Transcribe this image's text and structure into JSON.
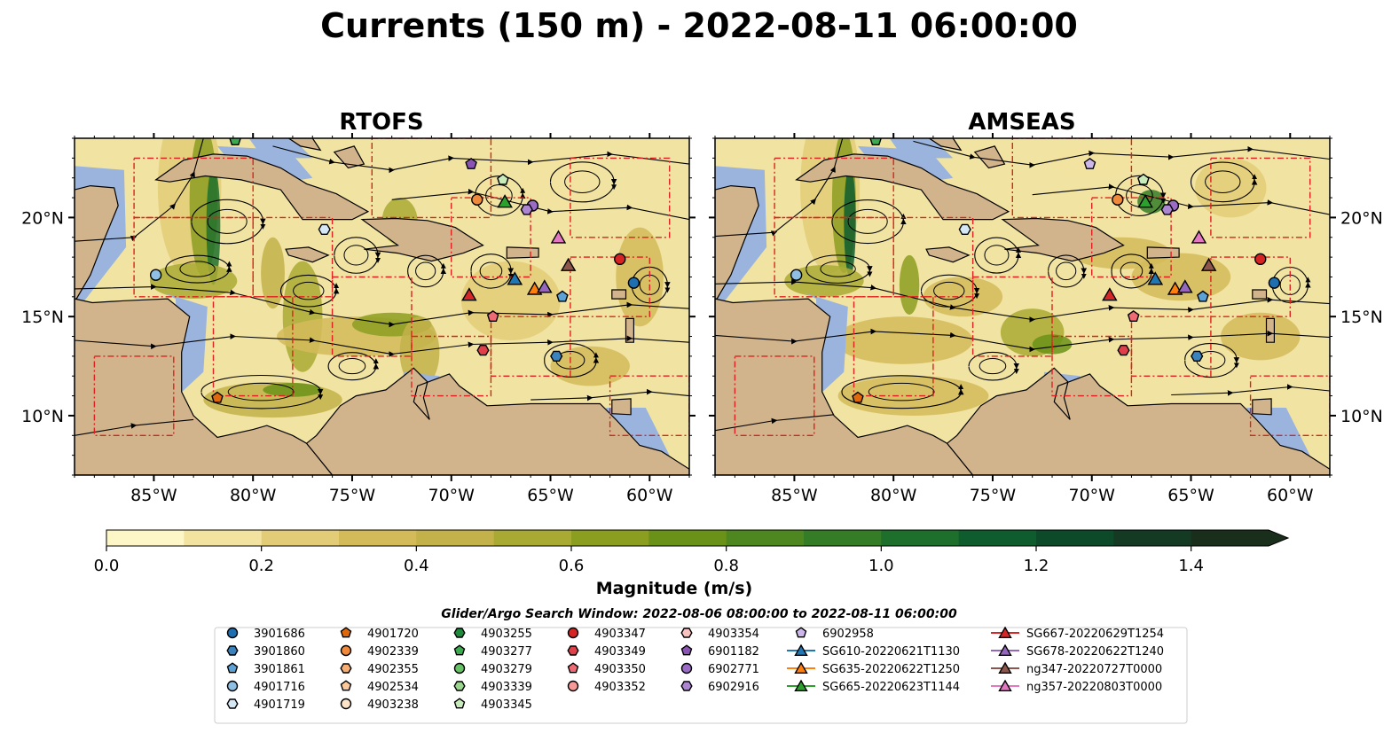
{
  "figure": {
    "title": "Currents (150 m) - 2022-08-11 06:00:00",
    "search_window": "Glider/Argo Search Window: 2022-08-06 08:00:00 to 2022-08-11 06:00:00"
  },
  "colors": {
    "land": "#d2b48c",
    "shallow_water": "#9ab4de",
    "grid_line": "#e02020",
    "colormap": [
      "#fdf6c6",
      "#f2e3a0",
      "#e3cc78",
      "#d4bb5a",
      "#c3b24a",
      "#a9aa34",
      "#8c9e20",
      "#6b9218",
      "#4e8720",
      "#357c26",
      "#1e6e2c",
      "#0f5c2e",
      "#0d4a2a",
      "#153a24",
      "#1a2e1c"
    ]
  },
  "maps": {
    "axes": {
      "lon_range": [
        -89,
        -58
      ],
      "lat_range": [
        7,
        24
      ],
      "lon_ticks": [
        "85°W",
        "80°W",
        "75°W",
        "70°W",
        "65°W",
        "60°W"
      ],
      "lat_ticks": [
        "20°N",
        "15°N",
        "10°N"
      ]
    },
    "panels": [
      {
        "title": "RTOFS",
        "markers": [
          {
            "id": "3901686",
            "lon": -60.8,
            "lat": 16.7
          },
          {
            "id": "3901860",
            "lon": -64.7,
            "lat": 13.0
          },
          {
            "id": "3901861",
            "lon": -64.4,
            "lat": 16.0
          },
          {
            "id": "4901716",
            "lon": -84.9,
            "lat": 17.1
          },
          {
            "id": "4901719",
            "lon": -76.4,
            "lat": 19.4
          },
          {
            "id": "4902339",
            "lon": -68.7,
            "lat": 20.9
          },
          {
            "id": "4901720",
            "lon": -81.8,
            "lat": 10.9
          },
          {
            "id": "4903277",
            "lon": -80.9,
            "lat": 23.9
          },
          {
            "id": "4903345",
            "lon": -67.4,
            "lat": 21.9
          },
          {
            "id": "4903347",
            "lon": -61.5,
            "lat": 17.9
          },
          {
            "id": "4903349",
            "lon": -68.4,
            "lat": 13.3
          },
          {
            "id": "4903350",
            "lon": -67.9,
            "lat": 15.0
          },
          {
            "id": "6902771",
            "lon": -65.9,
            "lat": 20.6
          },
          {
            "id": "6902916",
            "lon": -66.2,
            "lat": 20.4
          },
          {
            "id": "6901182",
            "lon": -69.0,
            "lat": 22.7
          },
          {
            "id": "SG610-20220621T1130",
            "lon": -66.8,
            "lat": 16.9
          },
          {
            "id": "SG635-20220622T1250",
            "lon": -65.8,
            "lat": 16.4
          },
          {
            "id": "SG665-20220623T1144",
            "lon": -67.3,
            "lat": 20.8
          },
          {
            "id": "SG667-20220629T1254",
            "lon": -69.1,
            "lat": 16.1
          },
          {
            "id": "SG678-20220622T1240",
            "lon": -65.3,
            "lat": 16.5
          },
          {
            "id": "ng347-20220727T0000",
            "lon": -64.1,
            "lat": 17.6
          },
          {
            "id": "ng357-20220803T0000",
            "lon": -64.6,
            "lat": 19.0
          }
        ]
      },
      {
        "title": "AMSEAS",
        "markers": [
          {
            "id": "3901686",
            "lon": -60.8,
            "lat": 16.7
          },
          {
            "id": "3901860",
            "lon": -64.7,
            "lat": 13.0
          },
          {
            "id": "3901861",
            "lon": -64.4,
            "lat": 16.0
          },
          {
            "id": "4901716",
            "lon": -84.9,
            "lat": 17.1
          },
          {
            "id": "4901719",
            "lon": -76.4,
            "lat": 19.4
          },
          {
            "id": "4902339",
            "lon": -68.7,
            "lat": 20.9
          },
          {
            "id": "4901720",
            "lon": -81.8,
            "lat": 10.9
          },
          {
            "id": "4903277",
            "lon": -80.9,
            "lat": 23.9
          },
          {
            "id": "4903345",
            "lon": -67.4,
            "lat": 21.9
          },
          {
            "id": "4903347",
            "lon": -61.5,
            "lat": 17.9
          },
          {
            "id": "4903349",
            "lon": -68.4,
            "lat": 13.3
          },
          {
            "id": "4903350",
            "lon": -67.9,
            "lat": 15.0
          },
          {
            "id": "6902771",
            "lon": -65.9,
            "lat": 20.6
          },
          {
            "id": "6902916",
            "lon": -66.2,
            "lat": 20.4
          },
          {
            "id": "6902958",
            "lon": -70.1,
            "lat": 22.7
          },
          {
            "id": "SG610-20220621T1130",
            "lon": -66.8,
            "lat": 16.9
          },
          {
            "id": "SG635-20220622T1250",
            "lon": -65.8,
            "lat": 16.4
          },
          {
            "id": "SG665-20220623T1144",
            "lon": -67.3,
            "lat": 20.8
          },
          {
            "id": "SG667-20220629T1254",
            "lon": -69.1,
            "lat": 16.1
          },
          {
            "id": "SG678-20220622T1240",
            "lon": -65.3,
            "lat": 16.5
          },
          {
            "id": "ng347-20220727T0000",
            "lon": -64.1,
            "lat": 17.6
          },
          {
            "id": "ng357-20220803T0000",
            "lon": -64.6,
            "lat": 19.0
          }
        ]
      }
    ]
  },
  "colorbar": {
    "label": "Magnitude (m/s)",
    "ticks": [
      "0.0",
      "0.2",
      "0.4",
      "0.6",
      "0.8",
      "1.0",
      "1.2",
      "1.4"
    ],
    "tick_values": [
      0,
      0.2,
      0.4,
      0.6,
      0.8,
      1.0,
      1.2,
      1.4
    ],
    "range": [
      0,
      1.5
    ],
    "extend": "max"
  },
  "legend": {
    "columns": [
      [
        {
          "label": "3901686",
          "shape": "circle",
          "color": "#1f6fb0"
        },
        {
          "label": "3901860",
          "shape": "hexagon",
          "color": "#3a83bd"
        },
        {
          "label": "3901861",
          "shape": "pentagon",
          "color": "#5da2d6"
        },
        {
          "label": "4901716",
          "shape": "circle",
          "color": "#8fc0e4"
        },
        {
          "label": "4901719",
          "shape": "hexagon",
          "color": "#d6e8f6"
        }
      ],
      [
        {
          "label": "4901720",
          "shape": "pentagon",
          "color": "#e0680c"
        },
        {
          "label": "4902339",
          "shape": "circle",
          "color": "#f08a3a"
        },
        {
          "label": "4902355",
          "shape": "hexagon",
          "color": "#f7ae72"
        },
        {
          "label": "4902534",
          "shape": "pentagon",
          "color": "#fbc99c"
        },
        {
          "label": "4903238",
          "shape": "circle",
          "color": "#fde3c8"
        }
      ],
      [
        {
          "label": "4903255",
          "shape": "hexagon",
          "color": "#1e8a3c"
        },
        {
          "label": "4903277",
          "shape": "pentagon",
          "color": "#3caa4e"
        },
        {
          "label": "4903279",
          "shape": "circle",
          "color": "#67c266"
        },
        {
          "label": "4903339",
          "shape": "hexagon",
          "color": "#9ad68e"
        },
        {
          "label": "4903345",
          "shape": "pentagon",
          "color": "#c8ebbc"
        }
      ],
      [
        {
          "label": "4903347",
          "shape": "circle",
          "color": "#d42424"
        },
        {
          "label": "4903349",
          "shape": "hexagon",
          "color": "#e0404a"
        },
        {
          "label": "4903350",
          "shape": "pentagon",
          "color": "#ee6a74"
        },
        {
          "label": "4903352",
          "shape": "circle",
          "color": "#f59a98"
        }
      ],
      [
        {
          "label": "4903354",
          "shape": "hexagon",
          "color": "#fbc2c2"
        },
        {
          "label": "6901182",
          "shape": "pentagon",
          "color": "#8a54b2"
        },
        {
          "label": "6902771",
          "shape": "circle",
          "color": "#9a6cc6"
        },
        {
          "label": "6902916",
          "shape": "hexagon",
          "color": "#ad86d2"
        }
      ],
      [
        {
          "label": "6902958",
          "shape": "pentagon",
          "color": "#cdb6ea"
        },
        {
          "label": "SG610-20220621T1130",
          "shape": "triangle-line",
          "color": "#1f77b4"
        },
        {
          "label": "SG635-20220622T1250",
          "shape": "triangle-line",
          "color": "#ff7f0e"
        },
        {
          "label": "SG665-20220623T1144",
          "shape": "triangle-line",
          "color": "#2ca02c"
        }
      ],
      [
        {
          "label": "SG667-20220629T1254",
          "shape": "triangle-line",
          "color": "#d62728"
        },
        {
          "label": "SG678-20220622T1240",
          "shape": "triangle-line",
          "color": "#9467bd"
        },
        {
          "label": "ng347-20220727T0000",
          "shape": "triangle-line",
          "color": "#8c564b"
        },
        {
          "label": "ng357-20220803T0000",
          "shape": "triangle-line",
          "color": "#e377c2"
        }
      ]
    ]
  }
}
